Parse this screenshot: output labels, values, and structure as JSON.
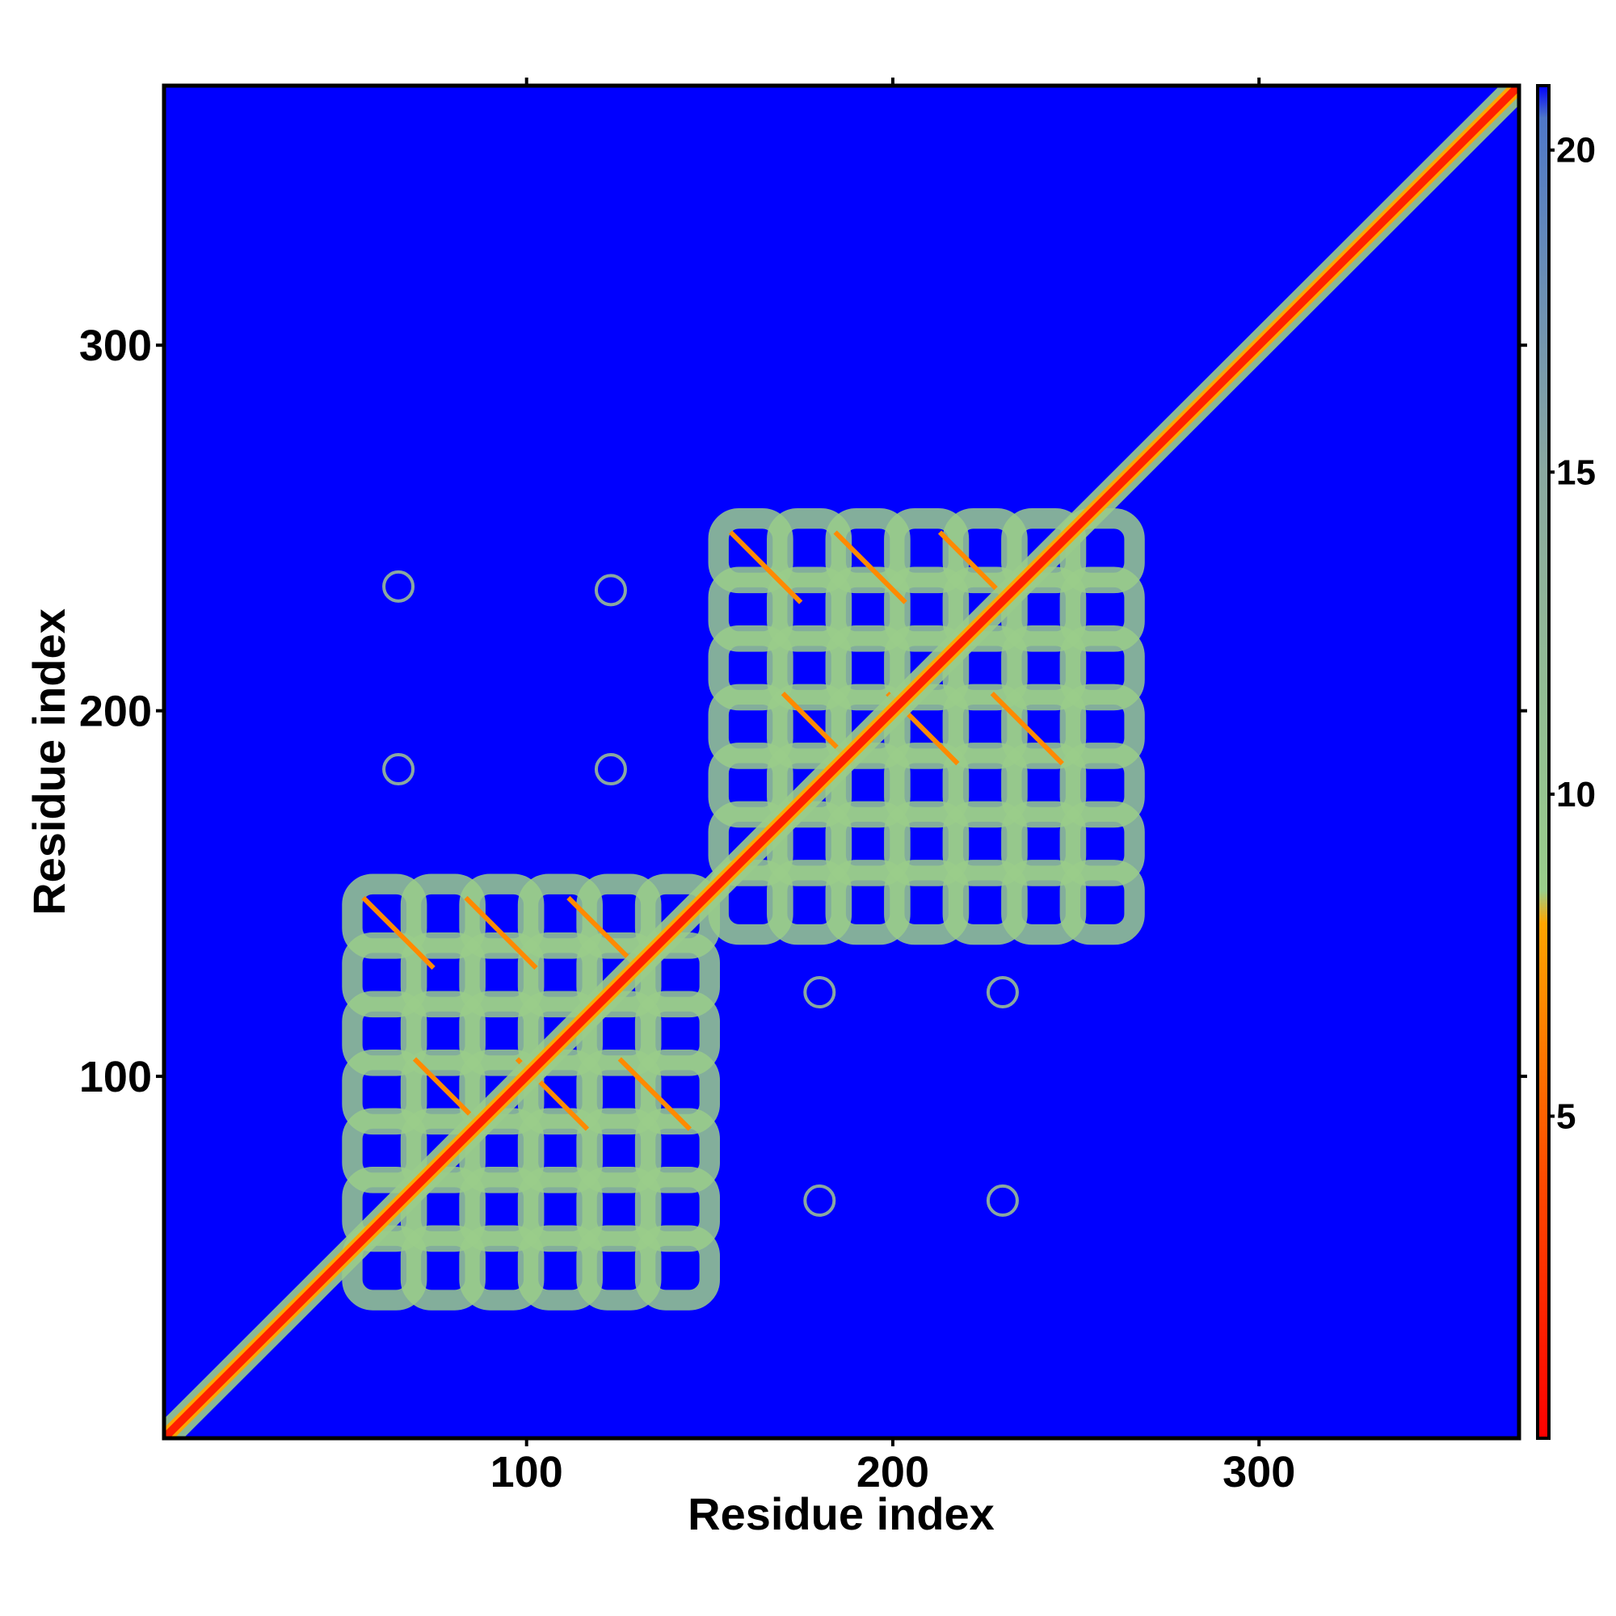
{
  "chart_data": {
    "type": "heatmap",
    "title": "",
    "xlabel": "Residue index",
    "ylabel": "Residue index",
    "xlim": [
      1,
      371
    ],
    "ylim": [
      1,
      371
    ],
    "x_ticks": [
      100,
      200,
      300
    ],
    "y_ticks": [
      100,
      200,
      300
    ],
    "x_tick_labels": [
      "100",
      "200",
      "300"
    ],
    "y_tick_labels": [
      "100",
      "200",
      "300"
    ],
    "colorbar": {
      "range": [
        0,
        21
      ],
      "ticks": [
        5,
        10,
        15,
        20
      ],
      "tick_labels": [
        "5",
        "10",
        "15",
        "20"
      ],
      "stops": [
        {
          "value": 0,
          "color": "#ff0000"
        },
        {
          "value": 4,
          "color": "#ff4a00"
        },
        {
          "value": 8,
          "color": "#ffa500"
        },
        {
          "value": 8.5,
          "color": "#9acd8a"
        },
        {
          "value": 15,
          "color": "#8aa8a0"
        },
        {
          "value": 20.5,
          "color": "#4f78c8"
        },
        {
          "value": 21,
          "color": "#0000ff"
        }
      ]
    },
    "background_color": "#0000ff",
    "diagonal_band": {
      "from": 1,
      "to": 371,
      "color_core": "#ff2000",
      "color_edge": "#9acd8a"
    },
    "contact_blocks": [
      {
        "name": "block-1",
        "x_range": [
          50,
          150
        ],
        "y_range": [
          50,
          155
        ],
        "pattern": "lattice",
        "lattice_step": 16
      },
      {
        "name": "block-2",
        "x_range": [
          150,
          252
        ],
        "y_range": [
          150,
          255
        ],
        "pattern": "lattice",
        "lattice_step": 16
      }
    ],
    "small_contacts": [
      {
        "x": 65,
        "y": 234
      },
      {
        "x": 65,
        "y": 184
      },
      {
        "x": 123,
        "y": 233
      },
      {
        "x": 123,
        "y": 184
      },
      {
        "x": 180,
        "y": 123
      },
      {
        "x": 230,
        "y": 123
      },
      {
        "x": 180,
        "y": 66
      },
      {
        "x": 230,
        "y": 66
      }
    ]
  }
}
